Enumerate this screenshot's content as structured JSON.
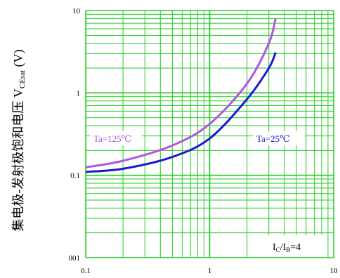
{
  "chart_data": {
    "type": "line",
    "log_x": true,
    "log_y": true,
    "grid": true,
    "grid_color": "#22cc22",
    "ylabel": [
      "集电极-发射极饱和电压  V",
      "CEsat",
      " (V)"
    ],
    "xlim": [
      0.1,
      10
    ],
    "ylim": [
      0.01,
      10
    ],
    "xticks": [
      0.1,
      1,
      10
    ],
    "yticks": [
      {
        "value": 0.01,
        "label": "001"
      },
      0.1,
      1,
      10
    ],
    "series": [
      {
        "name": "Ta=125℃",
        "color": "#b455e0",
        "x": [
          0.1,
          0.2,
          0.5,
          1,
          2,
          3,
          3.4
        ],
        "values": [
          0.125,
          0.15,
          0.23,
          0.42,
          1.3,
          4.0,
          8.0
        ]
      },
      {
        "name": "Ta=25℃",
        "color": "#1a1ad0",
        "x": [
          0.1,
          0.2,
          0.5,
          1,
          2,
          3,
          3.4
        ],
        "values": [
          0.11,
          0.12,
          0.167,
          0.28,
          0.84,
          2.0,
          3.1
        ]
      }
    ],
    "annotation": [
      "I",
      "C",
      "/I",
      "B",
      "=4"
    ]
  }
}
